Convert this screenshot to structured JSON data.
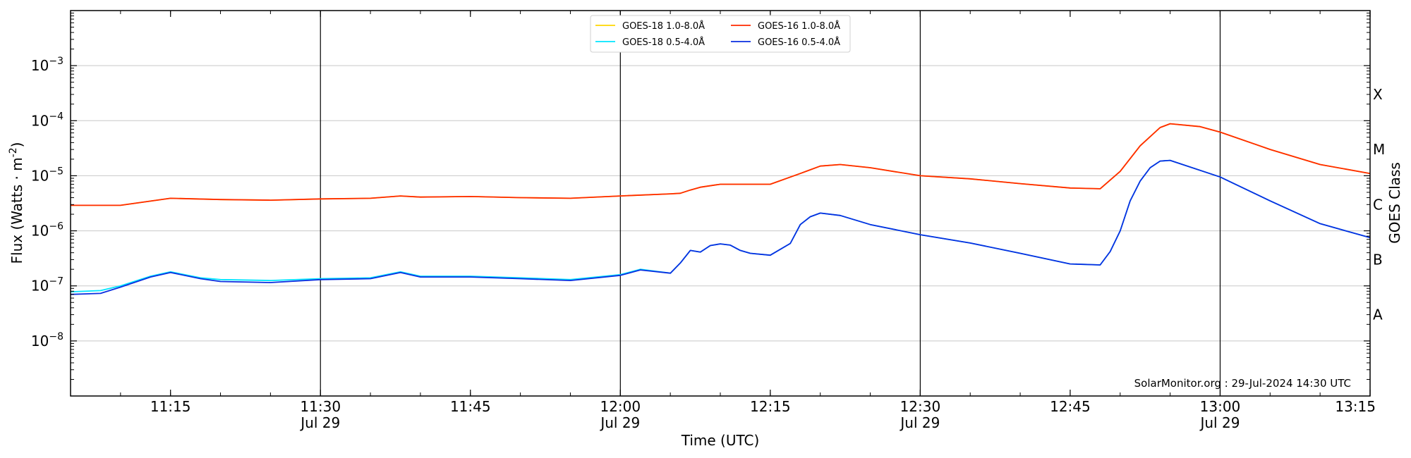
{
  "chart_data": {
    "type": "line",
    "xlabel": "Time (UTC)",
    "ylabel": "Flux (Watts · m",
    "ylabel_sup": "-2",
    "ylabel_end": ")",
    "right_label": "GOES Class",
    "y_scale": "log",
    "xlim": [
      "11:05",
      "13:15"
    ],
    "ylim": [
      1e-09,
      0.01
    ],
    "y_ticks": [
      {
        "value": 1e-08,
        "base": "10",
        "exp": "−8"
      },
      {
        "value": 1e-07,
        "base": "10",
        "exp": "−7"
      },
      {
        "value": 1e-06,
        "base": "10",
        "exp": "−6"
      },
      {
        "value": 1e-05,
        "base": "10",
        "exp": "−5"
      },
      {
        "value": 0.0001,
        "base": "10",
        "exp": "−4"
      },
      {
        "value": 0.001,
        "base": "10",
        "exp": "−3"
      }
    ],
    "x_ticks": [
      {
        "time": "11:15",
        "label": "11:15",
        "date": ""
      },
      {
        "time": "11:30",
        "label": "11:30",
        "date": "Jul 29"
      },
      {
        "time": "11:45",
        "label": "11:45",
        "date": ""
      },
      {
        "time": "12:00",
        "label": "12:00",
        "date": "Jul 29"
      },
      {
        "time": "12:15",
        "label": "12:15",
        "date": ""
      },
      {
        "time": "12:30",
        "label": "12:30",
        "date": "Jul 29"
      },
      {
        "time": "12:45",
        "label": "12:45",
        "date": ""
      },
      {
        "time": "13:00",
        "label": "13:00",
        "date": "Jul 29"
      },
      {
        "time": "13:15",
        "label": "13:15",
        "date": ""
      }
    ],
    "vertical_lines": [
      "11:30",
      "12:00",
      "12:30",
      "13:00"
    ],
    "goes_classes": [
      {
        "label": "X",
        "y": 0.0003
      },
      {
        "label": "M",
        "y": 3e-05
      },
      {
        "label": "C",
        "y": 3e-06
      },
      {
        "label": "B",
        "y": 3e-07
      },
      {
        "label": "A",
        "y": 3e-08
      }
    ],
    "grid": "horizontal at decades",
    "legend_position": "top-center",
    "credit": "SolarMonitor.org : 29-Jul-2024 14:30 UTC",
    "series": [
      {
        "name": "GOES-18 1.0-8.0Å",
        "color": "#ffd700",
        "x": [
          "11:05",
          "11:10",
          "11:15",
          "11:20",
          "11:25",
          "11:30",
          "11:35",
          "11:38",
          "11:40",
          "11:45",
          "11:50",
          "11:55",
          "12:00",
          "12:05",
          "12:06",
          "12:07",
          "12:08",
          "12:10",
          "12:15",
          "12:18",
          "12:20",
          "12:22",
          "12:25",
          "12:30",
          "12:35",
          "12:40",
          "12:45",
          "12:48",
          "12:50",
          "12:52",
          "12:54",
          "12:55",
          "12:58",
          "13:00",
          "13:05",
          "13:10",
          "13:15"
        ],
        "y": [
          2.9e-06,
          2.9e-06,
          3.9e-06,
          3.7e-06,
          3.6e-06,
          3.8e-06,
          3.9e-06,
          4.3e-06,
          4.1e-06,
          4.2e-06,
          4e-06,
          3.9e-06,
          4.3e-06,
          4.7e-06,
          4.8e-06,
          5.5e-06,
          6.2e-06,
          7e-06,
          7e-06,
          1.1e-05,
          1.5e-05,
          1.6e-05,
          1.4e-05,
          1e-05,
          8.8e-06,
          7.2e-06,
          6e-06,
          5.8e-06,
          1.2e-05,
          3.5e-05,
          7.5e-05,
          8.8e-05,
          7.8e-05,
          6.2e-05,
          3e-05,
          1.6e-05,
          1.1e-05
        ]
      },
      {
        "name": "GOES-16 1.0-8.0Å",
        "color": "#ff2a00",
        "x": [
          "11:05",
          "11:10",
          "11:15",
          "11:20",
          "11:25",
          "11:30",
          "11:35",
          "11:38",
          "11:40",
          "11:45",
          "11:50",
          "11:55",
          "12:00",
          "12:05",
          "12:06",
          "12:07",
          "12:08",
          "12:10",
          "12:15",
          "12:18",
          "12:20",
          "12:22",
          "12:25",
          "12:30",
          "12:35",
          "12:40",
          "12:45",
          "12:48",
          "12:50",
          "12:52",
          "12:54",
          "12:55",
          "12:58",
          "13:00",
          "13:05",
          "13:10",
          "13:15"
        ],
        "y": [
          2.9e-06,
          2.9e-06,
          3.9e-06,
          3.7e-06,
          3.6e-06,
          3.8e-06,
          3.9e-06,
          4.3e-06,
          4.1e-06,
          4.2e-06,
          4e-06,
          3.9e-06,
          4.3e-06,
          4.7e-06,
          4.8e-06,
          5.5e-06,
          6.2e-06,
          7e-06,
          7e-06,
          1.1e-05,
          1.5e-05,
          1.6e-05,
          1.4e-05,
          1e-05,
          8.8e-06,
          7.2e-06,
          6e-06,
          5.8e-06,
          1.2e-05,
          3.5e-05,
          7.5e-05,
          8.8e-05,
          7.8e-05,
          6.2e-05,
          3e-05,
          1.6e-05,
          1.1e-05
        ]
      },
      {
        "name": "GOES-18 0.5-4.0Å",
        "color": "#00e5ff",
        "x": [
          "11:05",
          "11:08",
          "11:10",
          "11:13",
          "11:15",
          "11:18",
          "11:20",
          "11:25",
          "11:30",
          "11:35",
          "11:38",
          "11:40",
          "11:45",
          "11:50",
          "11:55",
          "12:00",
          "12:02",
          "12:05",
          "12:06",
          "12:07",
          "12:08",
          "12:09",
          "12:10",
          "12:11",
          "12:12",
          "12:13",
          "12:15",
          "12:17",
          "12:18",
          "12:19",
          "12:20",
          "12:22",
          "12:25",
          "12:30",
          "12:35",
          "12:40",
          "12:45",
          "12:48",
          "12:49",
          "12:50",
          "12:51",
          "12:52",
          "12:53",
          "12:54",
          "12:55",
          "13:00",
          "13:05",
          "13:10",
          "13:15"
        ],
        "y": [
          7.8e-08,
          8.2e-08,
          1e-07,
          1.5e-07,
          1.8e-07,
          1.4e-07,
          1.3e-07,
          1.25e-07,
          1.35e-07,
          1.4e-07,
          1.8e-07,
          1.5e-07,
          1.5e-07,
          1.4e-07,
          1.3e-07,
          1.6e-07,
          2e-07,
          1.7e-07,
          2.6e-07,
          4.4e-07,
          4.1e-07,
          5.4e-07,
          5.8e-07,
          5.5e-07,
          4.4e-07,
          3.9e-07,
          3.6e-07,
          5.9e-07,
          1.3e-06,
          1.8e-06,
          2.1e-06,
          1.9e-06,
          1.3e-06,
          8.5e-07,
          6e-07,
          3.9e-07,
          2.5e-07,
          2.4e-07,
          4.2e-07,
          1e-06,
          3.5e-06,
          8e-06,
          1.4e-05,
          1.85e-05,
          1.9e-05,
          9.5e-06,
          3.5e-06,
          1.35e-06,
          7.5e-07
        ]
      },
      {
        "name": "GOES-16 0.5-4.0Å",
        "color": "#0a2ee0",
        "x": [
          "11:05",
          "11:08",
          "11:10",
          "11:13",
          "11:15",
          "11:18",
          "11:20",
          "11:25",
          "11:30",
          "11:35",
          "11:38",
          "11:40",
          "11:45",
          "11:50",
          "11:55",
          "12:00",
          "12:02",
          "12:05",
          "12:06",
          "12:07",
          "12:08",
          "12:09",
          "12:10",
          "12:11",
          "12:12",
          "12:13",
          "12:15",
          "12:17",
          "12:18",
          "12:19",
          "12:20",
          "12:22",
          "12:25",
          "12:30",
          "12:35",
          "12:40",
          "12:45",
          "12:48",
          "12:49",
          "12:50",
          "12:51",
          "12:52",
          "12:53",
          "12:54",
          "12:55",
          "13:00",
          "13:05",
          "13:10",
          "13:15"
        ],
        "y": [
          7e-08,
          7.3e-08,
          9.5e-08,
          1.45e-07,
          1.75e-07,
          1.35e-07,
          1.2e-07,
          1.15e-07,
          1.3e-07,
          1.35e-07,
          1.75e-07,
          1.45e-07,
          1.45e-07,
          1.35e-07,
          1.25e-07,
          1.55e-07,
          1.95e-07,
          1.7e-07,
          2.6e-07,
          4.4e-07,
          4.1e-07,
          5.4e-07,
          5.8e-07,
          5.5e-07,
          4.4e-07,
          3.9e-07,
          3.6e-07,
          5.9e-07,
          1.3e-06,
          1.8e-06,
          2.1e-06,
          1.9e-06,
          1.3e-06,
          8.5e-07,
          6e-07,
          3.9e-07,
          2.5e-07,
          2.4e-07,
          4.2e-07,
          1e-06,
          3.5e-06,
          8e-06,
          1.4e-05,
          1.85e-05,
          1.9e-05,
          9.5e-06,
          3.5e-06,
          1.35e-06,
          7.5e-07
        ]
      }
    ],
    "legend_order": [
      0,
      2,
      1,
      3
    ]
  }
}
